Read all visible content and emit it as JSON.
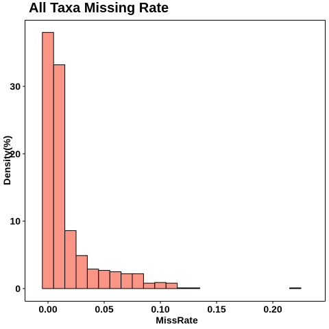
{
  "chart_data": {
    "type": "bar",
    "title": "All Taxa Missing Rate",
    "xlabel": "MissRate",
    "ylabel": "Density(%)",
    "bin_width": 0.01,
    "bins_start": [
      0.0,
      0.01,
      0.02,
      0.03,
      0.04,
      0.05,
      0.06,
      0.07,
      0.08,
      0.09,
      0.1,
      0.11,
      0.12,
      0.13,
      0.14,
      0.15,
      0.16,
      0.17,
      0.18,
      0.19,
      0.2,
      0.21,
      0.22
    ],
    "values": [
      38.0,
      33.2,
      8.6,
      4.9,
      2.9,
      2.7,
      2.5,
      2.2,
      2.2,
      0.8,
      0.9,
      0.8,
      0.1,
      0.1,
      0,
      0,
      0,
      0,
      0,
      0,
      0,
      0,
      0.1
    ],
    "xlim": [
      -0.005,
      0.235
    ],
    "ylim": [
      0,
      40
    ],
    "x_ticks": [
      0.0,
      0.05,
      0.1,
      0.15,
      0.2
    ],
    "x_tick_labels": [
      "0.00",
      "0.05",
      "0.10",
      "0.15",
      "0.20"
    ],
    "y_ticks": [
      0,
      10,
      20,
      30
    ],
    "y_tick_labels": [
      "0",
      "10",
      "20",
      "30"
    ],
    "bar_fill": "#fa9586",
    "bar_stroke": "#000000",
    "grid": false
  }
}
